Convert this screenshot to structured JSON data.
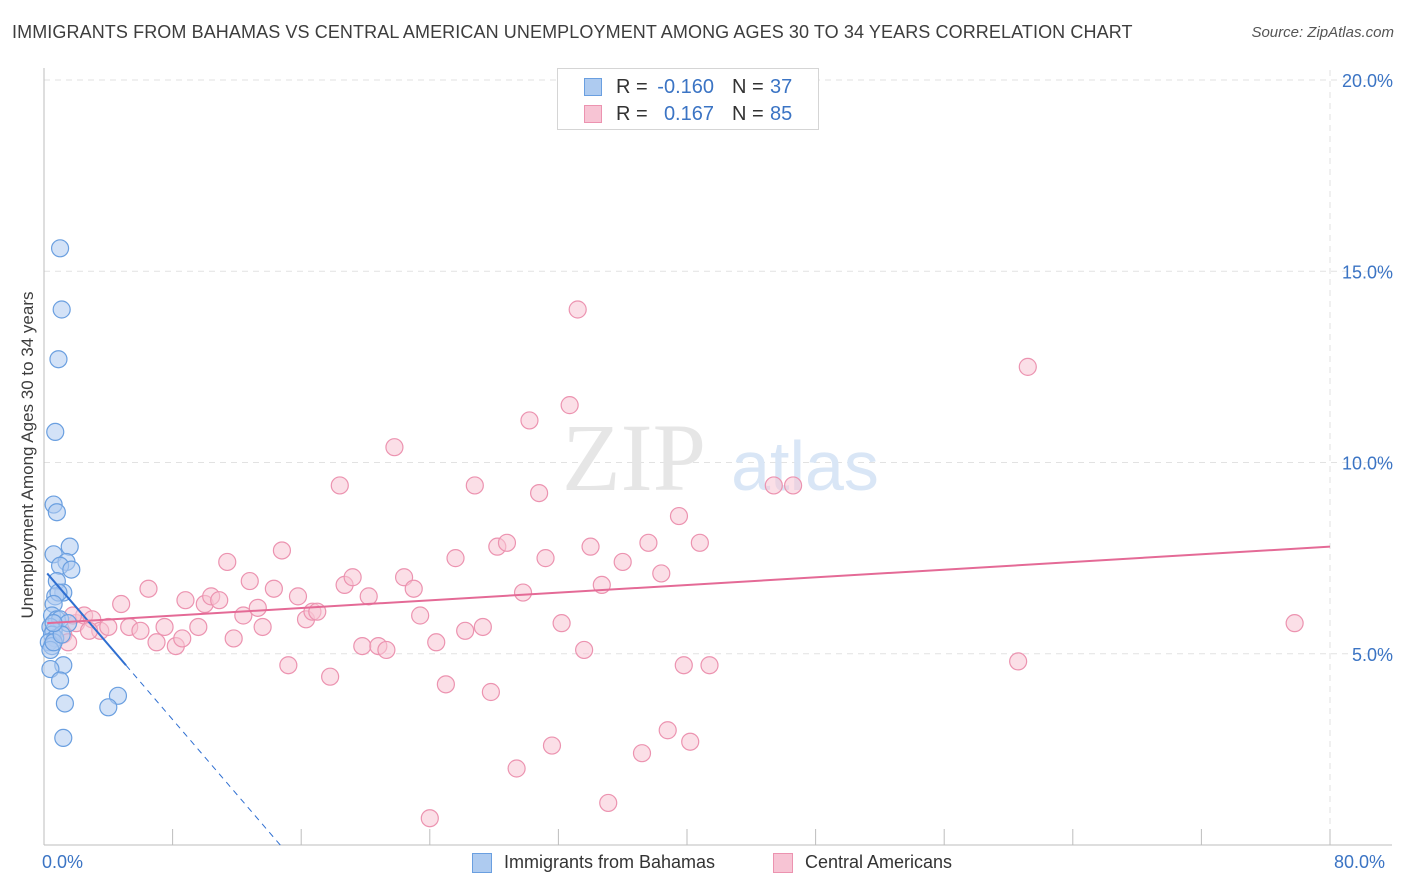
{
  "header": {
    "title": "IMMIGRANTS FROM BAHAMAS VS CENTRAL AMERICAN UNEMPLOYMENT AMONG AGES 30 TO 34 YEARS CORRELATION CHART",
    "source": "Source: ZipAtlas.com"
  },
  "colors": {
    "blue_fill": "#aecbf0",
    "blue_stroke": "#6a9fe0",
    "blue_line": "#2f6fd1",
    "pink_fill": "#f7c4d4",
    "pink_stroke": "#ec93b0",
    "pink_line": "#e46a96",
    "axis_text": "#3b74c4",
    "grid": "#e2e2e2"
  },
  "legend_top": {
    "rows": [
      {
        "r_label": "R =",
        "r_value": "-0.160",
        "n_label": "N =",
        "n_value": "37"
      },
      {
        "r_label": "R =",
        "r_value": "0.167",
        "n_label": "N =",
        "n_value": "85"
      }
    ]
  },
  "legend_bottom": {
    "items": [
      "Immigrants from Bahamas",
      "Central Americans"
    ]
  },
  "watermark": {
    "part1": "ZIP",
    "part2": "atlas"
  },
  "chart_data": {
    "type": "scatter",
    "title": "IMMIGRANTS FROM BAHAMAS VS CENTRAL AMERICAN UNEMPLOYMENT AMONG AGES 30 TO 34 YEARS CORRELATION CHART",
    "xlabel": "",
    "ylabel": "Unemployment Among Ages 30 to 34 years",
    "xlim": [
      0,
      80
    ],
    "ylim": [
      0,
      20
    ],
    "x_tick_labels": [
      "0.0%",
      "80.0%"
    ],
    "y_ticks": [
      5,
      10,
      15,
      20
    ],
    "y_tick_labels": [
      "5.0%",
      "10.0%",
      "15.0%",
      "20.0%"
    ],
    "grid": true,
    "legend_position": "top-center",
    "series": [
      {
        "name": "Immigrants from Bahamas",
        "r": -0.16,
        "n": 37,
        "trend": {
          "x0": 0.2,
          "y0": 7.1,
          "x1": 5.1,
          "y1": 4.7,
          "dash_to_x": 14.8
        },
        "points": [
          [
            1.0,
            15.6
          ],
          [
            1.1,
            14.0
          ],
          [
            0.9,
            12.7
          ],
          [
            0.7,
            10.8
          ],
          [
            0.6,
            8.9
          ],
          [
            0.8,
            8.7
          ],
          [
            1.6,
            7.8
          ],
          [
            0.6,
            7.6
          ],
          [
            1.4,
            7.4
          ],
          [
            1.0,
            7.3
          ],
          [
            1.7,
            7.2
          ],
          [
            0.8,
            6.9
          ],
          [
            1.2,
            6.6
          ],
          [
            0.7,
            6.5
          ],
          [
            0.9,
            6.6
          ],
          [
            0.6,
            6.3
          ],
          [
            0.5,
            6.0
          ],
          [
            0.8,
            5.9
          ],
          [
            1.0,
            5.9
          ],
          [
            1.5,
            5.8
          ],
          [
            0.4,
            5.7
          ],
          [
            0.6,
            5.6
          ],
          [
            0.5,
            5.5
          ],
          [
            0.7,
            5.4
          ],
          [
            0.3,
            5.3
          ],
          [
            0.5,
            5.2
          ],
          [
            0.4,
            5.1
          ],
          [
            0.6,
            5.3
          ],
          [
            1.1,
            5.5
          ],
          [
            1.2,
            4.7
          ],
          [
            0.4,
            4.6
          ],
          [
            1.0,
            4.3
          ],
          [
            4.6,
            3.9
          ],
          [
            1.3,
            3.7
          ],
          [
            4.0,
            3.6
          ],
          [
            1.2,
            2.8
          ],
          [
            0.6,
            5.8
          ]
        ]
      },
      {
        "name": "Central Americans",
        "r": 0.167,
        "n": 85,
        "trend": {
          "x0": 0.2,
          "y0": 5.8,
          "x1": 80.0,
          "y1": 7.8
        },
        "points": [
          [
            1.2,
            5.5
          ],
          [
            1.5,
            5.3
          ],
          [
            2.0,
            5.8
          ],
          [
            2.5,
            6.0
          ],
          [
            3.0,
            5.9
          ],
          [
            3.5,
            5.6
          ],
          [
            4.0,
            5.7
          ],
          [
            4.8,
            6.3
          ],
          [
            5.3,
            5.7
          ],
          [
            6.0,
            5.6
          ],
          [
            6.5,
            6.7
          ],
          [
            7.0,
            5.3
          ],
          [
            7.5,
            5.7
          ],
          [
            8.2,
            5.2
          ],
          [
            8.6,
            5.4
          ],
          [
            8.8,
            6.4
          ],
          [
            9.6,
            5.7
          ],
          [
            10.0,
            6.3
          ],
          [
            10.4,
            6.5
          ],
          [
            10.9,
            6.4
          ],
          [
            11.4,
            7.4
          ],
          [
            11.8,
            5.4
          ],
          [
            12.4,
            6.0
          ],
          [
            12.8,
            6.9
          ],
          [
            13.3,
            6.2
          ],
          [
            13.6,
            5.7
          ],
          [
            14.3,
            6.7
          ],
          [
            14.8,
            7.7
          ],
          [
            15.2,
            4.7
          ],
          [
            15.8,
            6.5
          ],
          [
            16.3,
            5.9
          ],
          [
            16.7,
            6.1
          ],
          [
            17.0,
            6.1
          ],
          [
            17.8,
            4.4
          ],
          [
            18.4,
            9.4
          ],
          [
            18.7,
            6.8
          ],
          [
            19.2,
            7.0
          ],
          [
            19.8,
            5.2
          ],
          [
            20.2,
            6.5
          ],
          [
            20.8,
            5.2
          ],
          [
            21.3,
            5.1
          ],
          [
            21.8,
            10.4
          ],
          [
            22.4,
            7.0
          ],
          [
            23.0,
            6.7
          ],
          [
            23.4,
            6.0
          ],
          [
            24.0,
            0.7
          ],
          [
            24.4,
            5.3
          ],
          [
            25.0,
            4.2
          ],
          [
            25.6,
            7.5
          ],
          [
            26.2,
            5.6
          ],
          [
            26.8,
            9.4
          ],
          [
            27.3,
            5.7
          ],
          [
            27.8,
            4.0
          ],
          [
            28.2,
            7.8
          ],
          [
            28.8,
            7.9
          ],
          [
            29.4,
            2.0
          ],
          [
            29.8,
            6.6
          ],
          [
            30.2,
            11.1
          ],
          [
            30.8,
            9.2
          ],
          [
            31.2,
            7.5
          ],
          [
            31.6,
            2.6
          ],
          [
            32.2,
            5.8
          ],
          [
            32.7,
            11.5
          ],
          [
            33.2,
            14.0
          ],
          [
            33.6,
            5.1
          ],
          [
            34.0,
            7.8
          ],
          [
            34.7,
            6.8
          ],
          [
            35.1,
            1.1
          ],
          [
            36.0,
            7.4
          ],
          [
            37.2,
            2.4
          ],
          [
            37.6,
            7.9
          ],
          [
            38.4,
            7.1
          ],
          [
            38.8,
            3.0
          ],
          [
            39.5,
            8.6
          ],
          [
            39.8,
            4.7
          ],
          [
            40.2,
            2.7
          ],
          [
            40.8,
            7.9
          ],
          [
            41.4,
            4.7
          ],
          [
            45.4,
            9.4
          ],
          [
            46.6,
            9.4
          ],
          [
            60.6,
            4.8
          ],
          [
            61.2,
            12.5
          ],
          [
            77.8,
            5.8
          ],
          [
            1.8,
            6.0
          ],
          [
            2.8,
            5.6
          ]
        ]
      }
    ]
  }
}
